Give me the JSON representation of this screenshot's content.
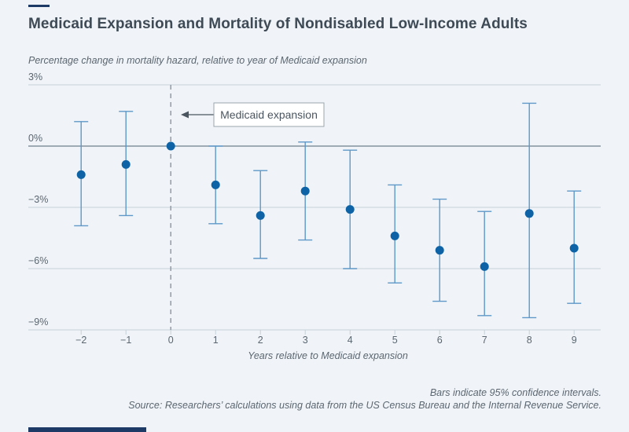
{
  "header": {
    "title": "Medicaid Expansion and Mortality of Nondisabled Low-Income Adults"
  },
  "chart_data": {
    "type": "scatter",
    "title": "Medicaid Expansion and Mortality of Nondisabled Low-Income Adults",
    "subtitle": "Percentage change in mortality hazard, relative to year of Medicaid expansion",
    "xlabel": "Years relative to Medicaid expansion",
    "annotation": {
      "label": "Medicaid expansion",
      "points_to_x": 0
    },
    "x": [
      -2,
      -1,
      0,
      1,
      2,
      3,
      4,
      5,
      6,
      7,
      8,
      9
    ],
    "xtick_labels": [
      "−2",
      "−1",
      "0",
      "1",
      "2",
      "3",
      "4",
      "5",
      "6",
      "7",
      "8",
      "9"
    ],
    "series": [
      {
        "name": "Percentage change in mortality hazard",
        "values": [
          -1.4,
          -0.9,
          0.0,
          -1.9,
          -3.4,
          -2.2,
          -3.1,
          -4.4,
          -5.1,
          -5.9,
          -3.3,
          -5.0
        ],
        "ci_high": [
          1.2,
          1.7,
          null,
          0.0,
          -1.2,
          0.2,
          -0.2,
          -1.9,
          -2.6,
          -3.2,
          2.1,
          -2.2
        ],
        "ci_low": [
          -3.9,
          -3.4,
          null,
          -3.8,
          -5.5,
          -4.6,
          -6.0,
          -6.7,
          -7.6,
          -8.3,
          -8.4,
          -7.7
        ]
      }
    ],
    "ytick_values": [
      3,
      0,
      -3,
      -6,
      -9
    ],
    "ytick_labels": [
      "3%",
      "0%",
      "−3%",
      "−6%",
      "−9%"
    ],
    "ylim": [
      -9,
      3
    ],
    "grid": true,
    "legend": "none",
    "colors": {
      "point": "#0d63a5",
      "whisker": "#5e97c8",
      "grid": "#c6cfd8",
      "zero_line": "#6e7d8b",
      "dashed": "#8b959f",
      "text": "#5b6670",
      "annotation_text": "#4a555f",
      "annotation_border": "#9aa4ad",
      "brand": "#1d3a66",
      "background": "#f0f4f8"
    }
  },
  "footer": {
    "note": "Bars indicate 95% confidence intervals.",
    "source": "Source: Researchers’ calculations using data from the US Census Bureau and the Internal Revenue Service."
  }
}
